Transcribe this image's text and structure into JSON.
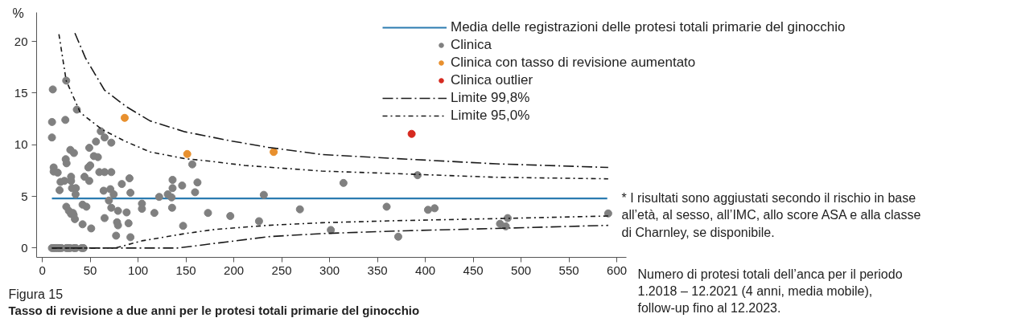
{
  "chart_data": {
    "type": "scatter",
    "title": "Tasso di revisione a due anni per le protesi totali primarie del ginocchio",
    "subtitle": "Figura 15",
    "xlabel": "Numero di protesi totali dell’anca per il periodo 1.2018 – 12.2021 (4 anni, media mobile), follow-up fino al 12.2023.",
    "ylabel": "%",
    "annotations": [
      {
        "text": "* I risultati sono aggiustati secondo il rischio in base all’età, al sesso, all’IMC, allo score ASA e alla classe di Charnley, se disponibile.",
        "x": 590,
        "y": 4.8
      }
    ],
    "xlim": [
      -6,
      610
    ],
    "ylim": [
      -0.9,
      22.8
    ],
    "xticks": [
      0,
      50,
      100,
      150,
      200,
      250,
      300,
      350,
      400,
      450,
      500,
      550,
      600
    ],
    "yticks": [
      0,
      5,
      10,
      15,
      20
    ],
    "grid": false,
    "legend": "top right",
    "series": [
      {
        "name": "Media delle registrazioni delle protesi totali primarie del ginocchio",
        "type": "line",
        "marker": "none",
        "color": "#2b7bb0",
        "line_style": "solid",
        "x": [
          10,
          590
        ],
        "values": [
          4.8,
          4.8
        ]
      },
      {
        "name": "Clinica",
        "marker": "circle",
        "color": "#808080",
        "x": [
          10.9,
          10.1,
          10,
          24.9,
          24,
          36,
          11.8,
          11.8,
          16,
          19,
          23,
          18,
          24.4,
          25.3,
          29.2,
          33,
          30,
          30,
          31,
          35,
          34.7,
          25,
          27.7,
          30,
          32.7,
          34,
          31.9,
          42,
          46,
          42,
          51,
          44,
          49,
          48,
          50,
          49,
          53.8,
          58,
          56,
          61,
          65,
          72,
          59.5,
          65,
          72,
          64,
          71,
          74.5,
          69.5,
          72,
          79,
          65,
          78,
          79,
          77,
          83,
          91,
          92,
          88,
          90,
          92,
          104,
          104,
          117,
          122,
          131,
          136,
          136,
          135,
          135.5,
          146,
          147,
          156.6,
          162,
          159.5,
          173,
          196.3,
          226.3,
          231.3,
          269,
          301.3,
          314.5,
          359.6,
          371.7,
          391.9,
          402.8,
          409.7,
          478,
          486,
          484,
          591,
          10,
          12,
          14,
          16,
          18,
          20,
          25,
          27,
          29,
          33,
          35,
          41,
          43
        ],
        "values": [
          15.35,
          12.2,
          10.7,
          16.2,
          12.4,
          13.4,
          7.8,
          7.4,
          7.3,
          6.4,
          6.5,
          5.6,
          8.6,
          8.2,
          9.5,
          9.2,
          6.9,
          6.5,
          5.8,
          5.8,
          5.2,
          4.0,
          3.6,
          3.3,
          3.2,
          2.8,
          3.4,
          4.2,
          4.0,
          2.3,
          1.9,
          6.9,
          6.5,
          7.8,
          8.0,
          9.7,
          8.9,
          8.8,
          10.3,
          11.3,
          10.7,
          10.2,
          7.35,
          7.35,
          7.35,
          5.55,
          5.7,
          5.2,
          4.6,
          3.9,
          3.6,
          2.9,
          2.5,
          2.2,
          1.2,
          6.2,
          6.75,
          5.35,
          3.45,
          2.4,
          1.05,
          4.3,
          3.8,
          3.4,
          4.95,
          5.2,
          6.6,
          5.8,
          4.9,
          3.9,
          6.05,
          2.15,
          8.1,
          6.35,
          5.4,
          3.4,
          3.1,
          2.6,
          5.15,
          3.75,
          1.75,
          6.3,
          4.0,
          1.1,
          7.05,
          3.7,
          3.85,
          2.35,
          2.9,
          2.1,
          3.35,
          0,
          0,
          0,
          0,
          0,
          0,
          0,
          0,
          0,
          0,
          0,
          0,
          0
        ]
      },
      {
        "name": "Clinica con tasso di revisione aumentato",
        "marker": "circle",
        "color": "#e8902e",
        "x": [
          86,
          151.3,
          241.6
        ],
        "values": [
          12.6,
          9.1,
          9.3
        ]
      },
      {
        "name": "Clinica outlier",
        "marker": "circle",
        "color": "#d62a20",
        "x": [
          385.7
        ],
        "values": [
          11.05
        ]
      },
      {
        "name": "Limite 99,8%",
        "type": "line",
        "marker": "none",
        "color": "#1a1a1a",
        "line_style": "dashdot",
        "x": [
          34,
          45,
          64.8,
          87.4,
          112.6,
          149,
          198,
          235.8,
          291.8,
          371.6,
          474,
          591
        ],
        "values": [
          20.8,
          18.4,
          15.3,
          13.7,
          12.3,
          11.25,
          10.35,
          9.75,
          9.05,
          8.65,
          8.15,
          7.8
        ]
      },
      {
        "type": "line",
        "marker": "none",
        "color": "#1a1a1a",
        "line_style": "dashdot",
        "x": [
          10,
          141,
          180,
          236,
          292,
          370,
          474,
          591
        ],
        "values": [
          0,
          0,
          0.45,
          1.1,
          1.4,
          1.65,
          1.9,
          2.2
        ]
      },
      {
        "name": "Limite 95,0%",
        "type": "line",
        "marker": "none",
        "color": "#1a1a1a",
        "line_style": "dashdot_short",
        "x": [
          17.3,
          24.9,
          39.7,
          62,
          86,
          112.6,
          149,
          171,
          211,
          291.8,
          370,
          474,
          591
        ],
        "values": [
          20.7,
          16.2,
          13.1,
          11.5,
          10.35,
          9.3,
          8.65,
          8.45,
          8.0,
          7.45,
          7.2,
          6.85,
          6.7
        ]
      },
      {
        "type": "line",
        "marker": "none",
        "color": "#1a1a1a",
        "line_style": "dashdot_short",
        "x": [
          10,
          76,
          104,
          149,
          180,
          236,
          292,
          370,
          474,
          591
        ],
        "values": [
          0,
          0,
          0.7,
          1.4,
          1.8,
          2.2,
          2.45,
          2.65,
          2.85,
          3.1
        ]
      }
    ]
  }
}
